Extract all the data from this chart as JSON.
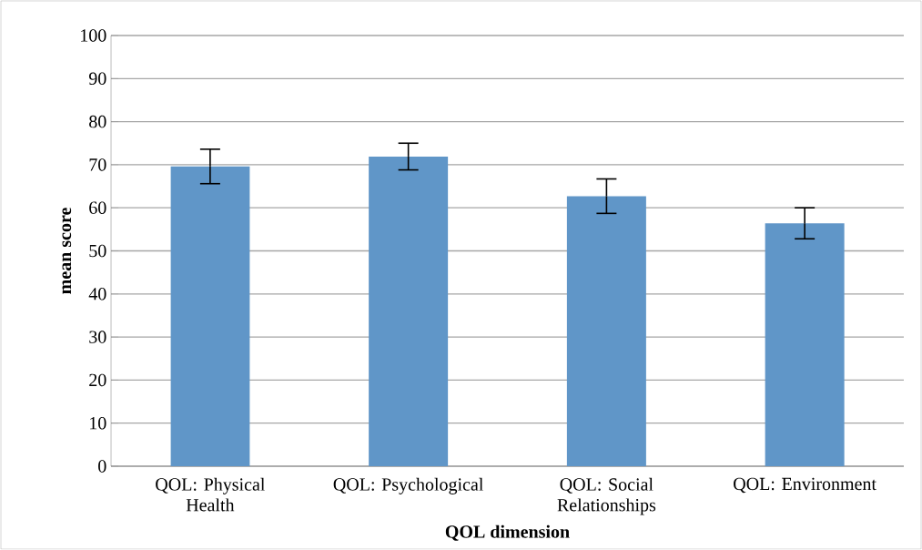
{
  "chart_data": {
    "type": "bar",
    "categories": [
      "QOL: Physical Health",
      "QOL: Psychological",
      "QOL: Social Relationships",
      "QOL: Environment"
    ],
    "values": [
      69.6,
      71.9,
      62.7,
      56.4
    ],
    "errors": [
      4,
      3.1,
      4,
      3.6
    ],
    "color": "#6096c8",
    "xlabel": "QOL dimension",
    "ylabel": "mean score",
    "ylim": [
      0,
      100
    ],
    "yticks": [
      0,
      10,
      20,
      30,
      40,
      50,
      60,
      70,
      80,
      90,
      100
    ],
    "grid": "y"
  }
}
